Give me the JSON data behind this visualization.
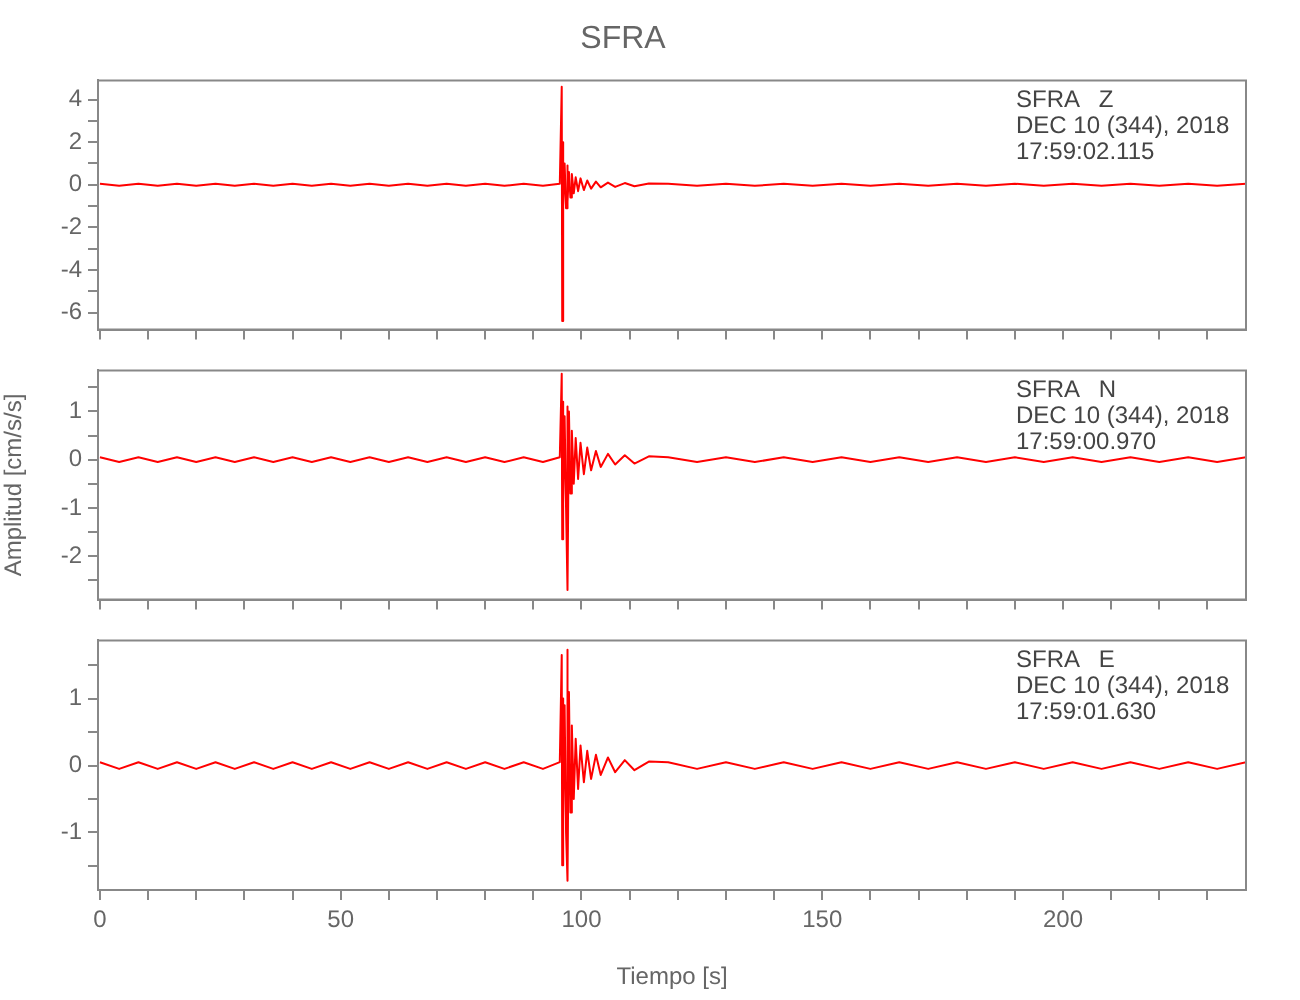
{
  "chart_data": [
    {
      "type": "line",
      "title": "SFRA",
      "annotations": [
        "SFRA   Z",
        "DEC 10 (344), 2018",
        "17:59:02.115"
      ],
      "tick_labels": "y",
      "x": [
        0,
        4,
        8,
        12,
        16,
        20,
        24,
        28,
        32,
        36,
        40,
        44,
        48,
        52,
        56,
        60,
        64,
        68,
        72,
        76,
        80,
        84,
        88,
        92,
        95.5,
        95.9,
        96.0,
        96.1,
        96.3,
        96.5,
        96.8,
        97.0,
        97.2,
        97.4,
        97.7,
        98.0,
        98.4,
        98.8,
        99.3,
        99.8,
        100.5,
        101.2,
        102,
        103,
        104,
        105.5,
        107,
        109,
        111,
        114,
        118,
        124,
        130,
        136,
        142,
        148,
        154,
        160,
        166,
        172,
        178,
        184,
        190,
        196,
        202,
        208,
        214,
        220,
        226,
        232,
        238
      ],
      "series": [
        {
          "color": "#ff0000",
          "values": [
            0.05,
            -0.05,
            0.05,
            -0.05,
            0.05,
            -0.05,
            0.05,
            -0.05,
            0.05,
            -0.05,
            0.05,
            -0.05,
            0.05,
            -0.05,
            0.05,
            -0.05,
            0.05,
            -0.05,
            0.05,
            -0.05,
            0.05,
            -0.05,
            0.05,
            -0.05,
            0.05,
            4.6,
            -6.4,
            2.0,
            -1.0,
            1.0,
            -1.1,
            0.9,
            -0.8,
            0.6,
            -0.6,
            0.5,
            -0.4,
            0.35,
            -0.3,
            0.3,
            -0.25,
            0.2,
            -0.18,
            0.15,
            -0.12,
            0.1,
            -0.1,
            0.08,
            -0.07,
            0.06,
            0.05,
            -0.05,
            0.05,
            -0.05,
            0.05,
            -0.05,
            0.05,
            -0.05,
            0.05,
            -0.05,
            0.05,
            -0.05,
            0.05,
            -0.05,
            0.05,
            -0.05,
            0.05,
            -0.05,
            0.05,
            -0.05,
            0.05
          ]
        }
      ],
      "xlim": [
        -0.4,
        238
      ],
      "xticks": [
        0,
        {
          "value": 10,
          "label": null
        },
        {
          "value": 20,
          "label": null
        },
        {
          "value": 30,
          "label": null
        },
        {
          "value": 40,
          "label": null
        },
        50,
        {
          "value": 60,
          "label": null
        },
        {
          "value": 70,
          "label": null
        },
        {
          "value": 80,
          "label": null
        },
        {
          "value": 90,
          "label": null
        },
        100,
        {
          "value": 110,
          "label": null
        },
        {
          "value": 120,
          "label": null
        },
        {
          "value": 130,
          "label": null
        },
        {
          "value": 140,
          "label": null
        },
        150,
        {
          "value": 160,
          "label": null
        },
        {
          "value": 170,
          "label": null
        },
        {
          "value": 180,
          "label": null
        },
        {
          "value": 190,
          "label": null
        },
        200,
        {
          "value": 210,
          "label": null
        },
        {
          "value": 220,
          "label": null
        },
        {
          "value": 230,
          "label": null
        }
      ],
      "ylim": [
        -6.8,
        4.9
      ],
      "yticks": [
        -6,
        {
          "value": -5,
          "label": null
        },
        -4,
        {
          "value": -3,
          "label": null
        },
        -2,
        {
          "value": -1,
          "label": null
        },
        0,
        {
          "value": 1,
          "label": null
        },
        2,
        {
          "value": 3,
          "label": null
        },
        4
      ]
    },
    {
      "type": "line",
      "ylabel": "Amplitud [cm/s/s]",
      "annotations": [
        "SFRA   N",
        "DEC 10 (344), 2018",
        "17:59:00.970"
      ],
      "tick_labels": "y",
      "x": [
        0,
        4,
        8,
        12,
        16,
        20,
        24,
        28,
        32,
        36,
        40,
        44,
        48,
        52,
        56,
        60,
        64,
        68,
        72,
        76,
        80,
        84,
        88,
        92,
        95.5,
        95.9,
        96.0,
        96.1,
        96.3,
        96.5,
        96.8,
        97.0,
        97.2,
        97.4,
        97.7,
        98.0,
        98.4,
        98.8,
        99.3,
        99.8,
        100.5,
        101.2,
        102,
        103,
        104,
        105.5,
        107,
        109,
        111,
        114,
        118,
        124,
        130,
        136,
        142,
        148,
        154,
        160,
        166,
        172,
        178,
        184,
        190,
        196,
        202,
        208,
        214,
        220,
        226,
        232,
        238
      ],
      "series": [
        {
          "color": "#ff0000",
          "values": [
            0.05,
            -0.05,
            0.05,
            -0.05,
            0.05,
            -0.05,
            0.05,
            -0.05,
            0.05,
            -0.05,
            0.05,
            -0.05,
            0.05,
            -0.05,
            0.05,
            -0.05,
            0.05,
            -0.05,
            0.05,
            -0.05,
            0.05,
            -0.05,
            0.05,
            -0.05,
            0.05,
            1.78,
            -1.65,
            1.2,
            -0.9,
            0.9,
            -1.0,
            1.1,
            -2.7,
            1.0,
            -0.7,
            0.6,
            -0.5,
            0.45,
            -0.4,
            0.35,
            -0.3,
            0.25,
            -0.22,
            0.18,
            -0.15,
            0.12,
            -0.1,
            0.09,
            -0.08,
            0.07,
            0.05,
            -0.05,
            0.05,
            -0.05,
            0.05,
            -0.05,
            0.05,
            -0.05,
            0.05,
            -0.05,
            0.05,
            -0.05,
            0.05,
            -0.05,
            0.05,
            -0.05,
            0.05,
            -0.05,
            0.05,
            -0.05,
            0.05
          ]
        }
      ],
      "xlim": [
        -0.4,
        238
      ],
      "xticks": [
        0,
        {
          "value": 10,
          "label": null
        },
        {
          "value": 20,
          "label": null
        },
        {
          "value": 30,
          "label": null
        },
        {
          "value": 40,
          "label": null
        },
        50,
        {
          "value": 60,
          "label": null
        },
        {
          "value": 70,
          "label": null
        },
        {
          "value": 80,
          "label": null
        },
        {
          "value": 90,
          "label": null
        },
        100,
        {
          "value": 110,
          "label": null
        },
        {
          "value": 120,
          "label": null
        },
        {
          "value": 130,
          "label": null
        },
        {
          "value": 140,
          "label": null
        },
        150,
        {
          "value": 160,
          "label": null
        },
        {
          "value": 170,
          "label": null
        },
        {
          "value": 180,
          "label": null
        },
        {
          "value": 190,
          "label": null
        },
        200,
        {
          "value": 210,
          "label": null
        },
        {
          "value": 220,
          "label": null
        },
        {
          "value": 230,
          "label": null
        }
      ],
      "ylim": [
        -2.9,
        1.85
      ],
      "yticks": [
        {
          "value": -2.5,
          "label": null
        },
        -2,
        {
          "value": -1.5,
          "label": null
        },
        -1,
        {
          "value": -0.5,
          "label": null
        },
        0,
        {
          "value": 0.5,
          "label": null
        },
        1,
        {
          "value": 1.5,
          "label": null
        }
      ]
    },
    {
      "type": "line",
      "xlabel": "Tiempo [s]",
      "annotations": [
        "SFRA   E",
        "DEC 10 (344), 2018",
        "17:59:01.630"
      ],
      "x": [
        0,
        4,
        8,
        12,
        16,
        20,
        24,
        28,
        32,
        36,
        40,
        44,
        48,
        52,
        56,
        60,
        64,
        68,
        72,
        76,
        80,
        84,
        88,
        92,
        95.5,
        95.9,
        96.0,
        96.1,
        96.3,
        96.5,
        96.8,
        97.0,
        97.2,
        97.4,
        97.7,
        98.0,
        98.4,
        98.8,
        99.3,
        99.8,
        100.5,
        101.2,
        102,
        103,
        104,
        105.5,
        107,
        109,
        111,
        114,
        118,
        124,
        130,
        136,
        142,
        148,
        154,
        160,
        166,
        172,
        178,
        184,
        190,
        196,
        202,
        208,
        214,
        220,
        226,
        232,
        238
      ],
      "series": [
        {
          "color": "#ff0000",
          "values": [
            0.05,
            -0.05,
            0.05,
            -0.05,
            0.05,
            -0.05,
            0.05,
            -0.05,
            0.05,
            -0.05,
            0.05,
            -0.05,
            0.05,
            -0.05,
            0.05,
            -0.05,
            0.05,
            -0.05,
            0.05,
            -0.05,
            0.05,
            -0.05,
            0.05,
            -0.05,
            0.05,
            1.65,
            -1.49,
            1.0,
            -0.8,
            0.9,
            -1.0,
            1.73,
            -1.72,
            1.1,
            -0.7,
            0.6,
            -0.5,
            0.4,
            -0.35,
            0.3,
            -0.25,
            0.22,
            -0.2,
            0.16,
            -0.14,
            0.12,
            -0.1,
            0.08,
            -0.07,
            0.06,
            0.05,
            -0.05,
            0.05,
            -0.05,
            0.05,
            -0.05,
            0.05,
            -0.05,
            0.05,
            -0.05,
            0.05,
            -0.05,
            0.05,
            -0.05,
            0.05,
            -0.05,
            0.05,
            -0.05,
            0.05,
            -0.05,
            0.05
          ]
        }
      ],
      "xlim": [
        -0.4,
        238
      ],
      "xticks": [
        0,
        {
          "value": 10,
          "label": null
        },
        {
          "value": 20,
          "label": null
        },
        {
          "value": 30,
          "label": null
        },
        {
          "value": 40,
          "label": null
        },
        50,
        {
          "value": 60,
          "label": null
        },
        {
          "value": 70,
          "label": null
        },
        {
          "value": 80,
          "label": null
        },
        {
          "value": 90,
          "label": null
        },
        100,
        {
          "value": 110,
          "label": null
        },
        {
          "value": 120,
          "label": null
        },
        {
          "value": 130,
          "label": null
        },
        {
          "value": 140,
          "label": null
        },
        150,
        {
          "value": 160,
          "label": null
        },
        {
          "value": 170,
          "label": null
        },
        {
          "value": 180,
          "label": null
        },
        {
          "value": 190,
          "label": null
        },
        200,
        {
          "value": 210,
          "label": null
        },
        {
          "value": 220,
          "label": null
        },
        {
          "value": 230,
          "label": null
        }
      ],
      "ylim": [
        -1.86,
        1.87
      ],
      "yticks": [
        {
          "value": -1.5,
          "label": null
        },
        -1,
        {
          "value": -0.5,
          "label": null
        },
        0,
        {
          "value": 0.5,
          "label": null
        },
        1,
        {
          "value": 1.5,
          "label": null
        }
      ]
    }
  ]
}
